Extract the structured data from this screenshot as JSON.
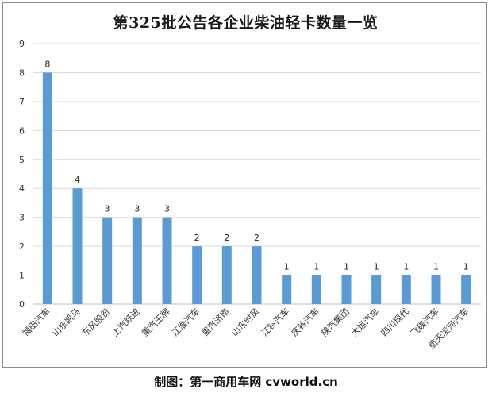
{
  "chart_data": {
    "type": "bar",
    "title": "第325批公告各企业柴油轻卡数量一览",
    "categories": [
      "福田汽车",
      "山东凯马",
      "东风股份",
      "上汽跃进",
      "重汽王牌",
      "江淮汽车",
      "重汽济南",
      "山东时风",
      "江铃汽车",
      "庆铃汽车",
      "陕汽集团",
      "大运汽车",
      "四川现代",
      "飞碟汽车",
      "航天凌河汽车"
    ],
    "values": [
      8,
      4,
      3,
      3,
      3,
      2,
      2,
      2,
      1,
      1,
      1,
      1,
      1,
      1,
      1
    ],
    "ylim": [
      0,
      9
    ],
    "yticks": [
      "0",
      "1",
      "2",
      "3",
      "4",
      "5",
      "6",
      "7",
      "8",
      "9"
    ],
    "data_labels": [
      "8",
      "4",
      "3",
      "3",
      "3",
      "2",
      "2",
      "2",
      "1",
      "1",
      "1",
      "1",
      "1",
      "1",
      "1"
    ],
    "bar_color": "#5b9bd5",
    "grid": true,
    "legend": "none"
  },
  "footer": {
    "credit": "制图：第一商用车网 cvworld.cn"
  }
}
